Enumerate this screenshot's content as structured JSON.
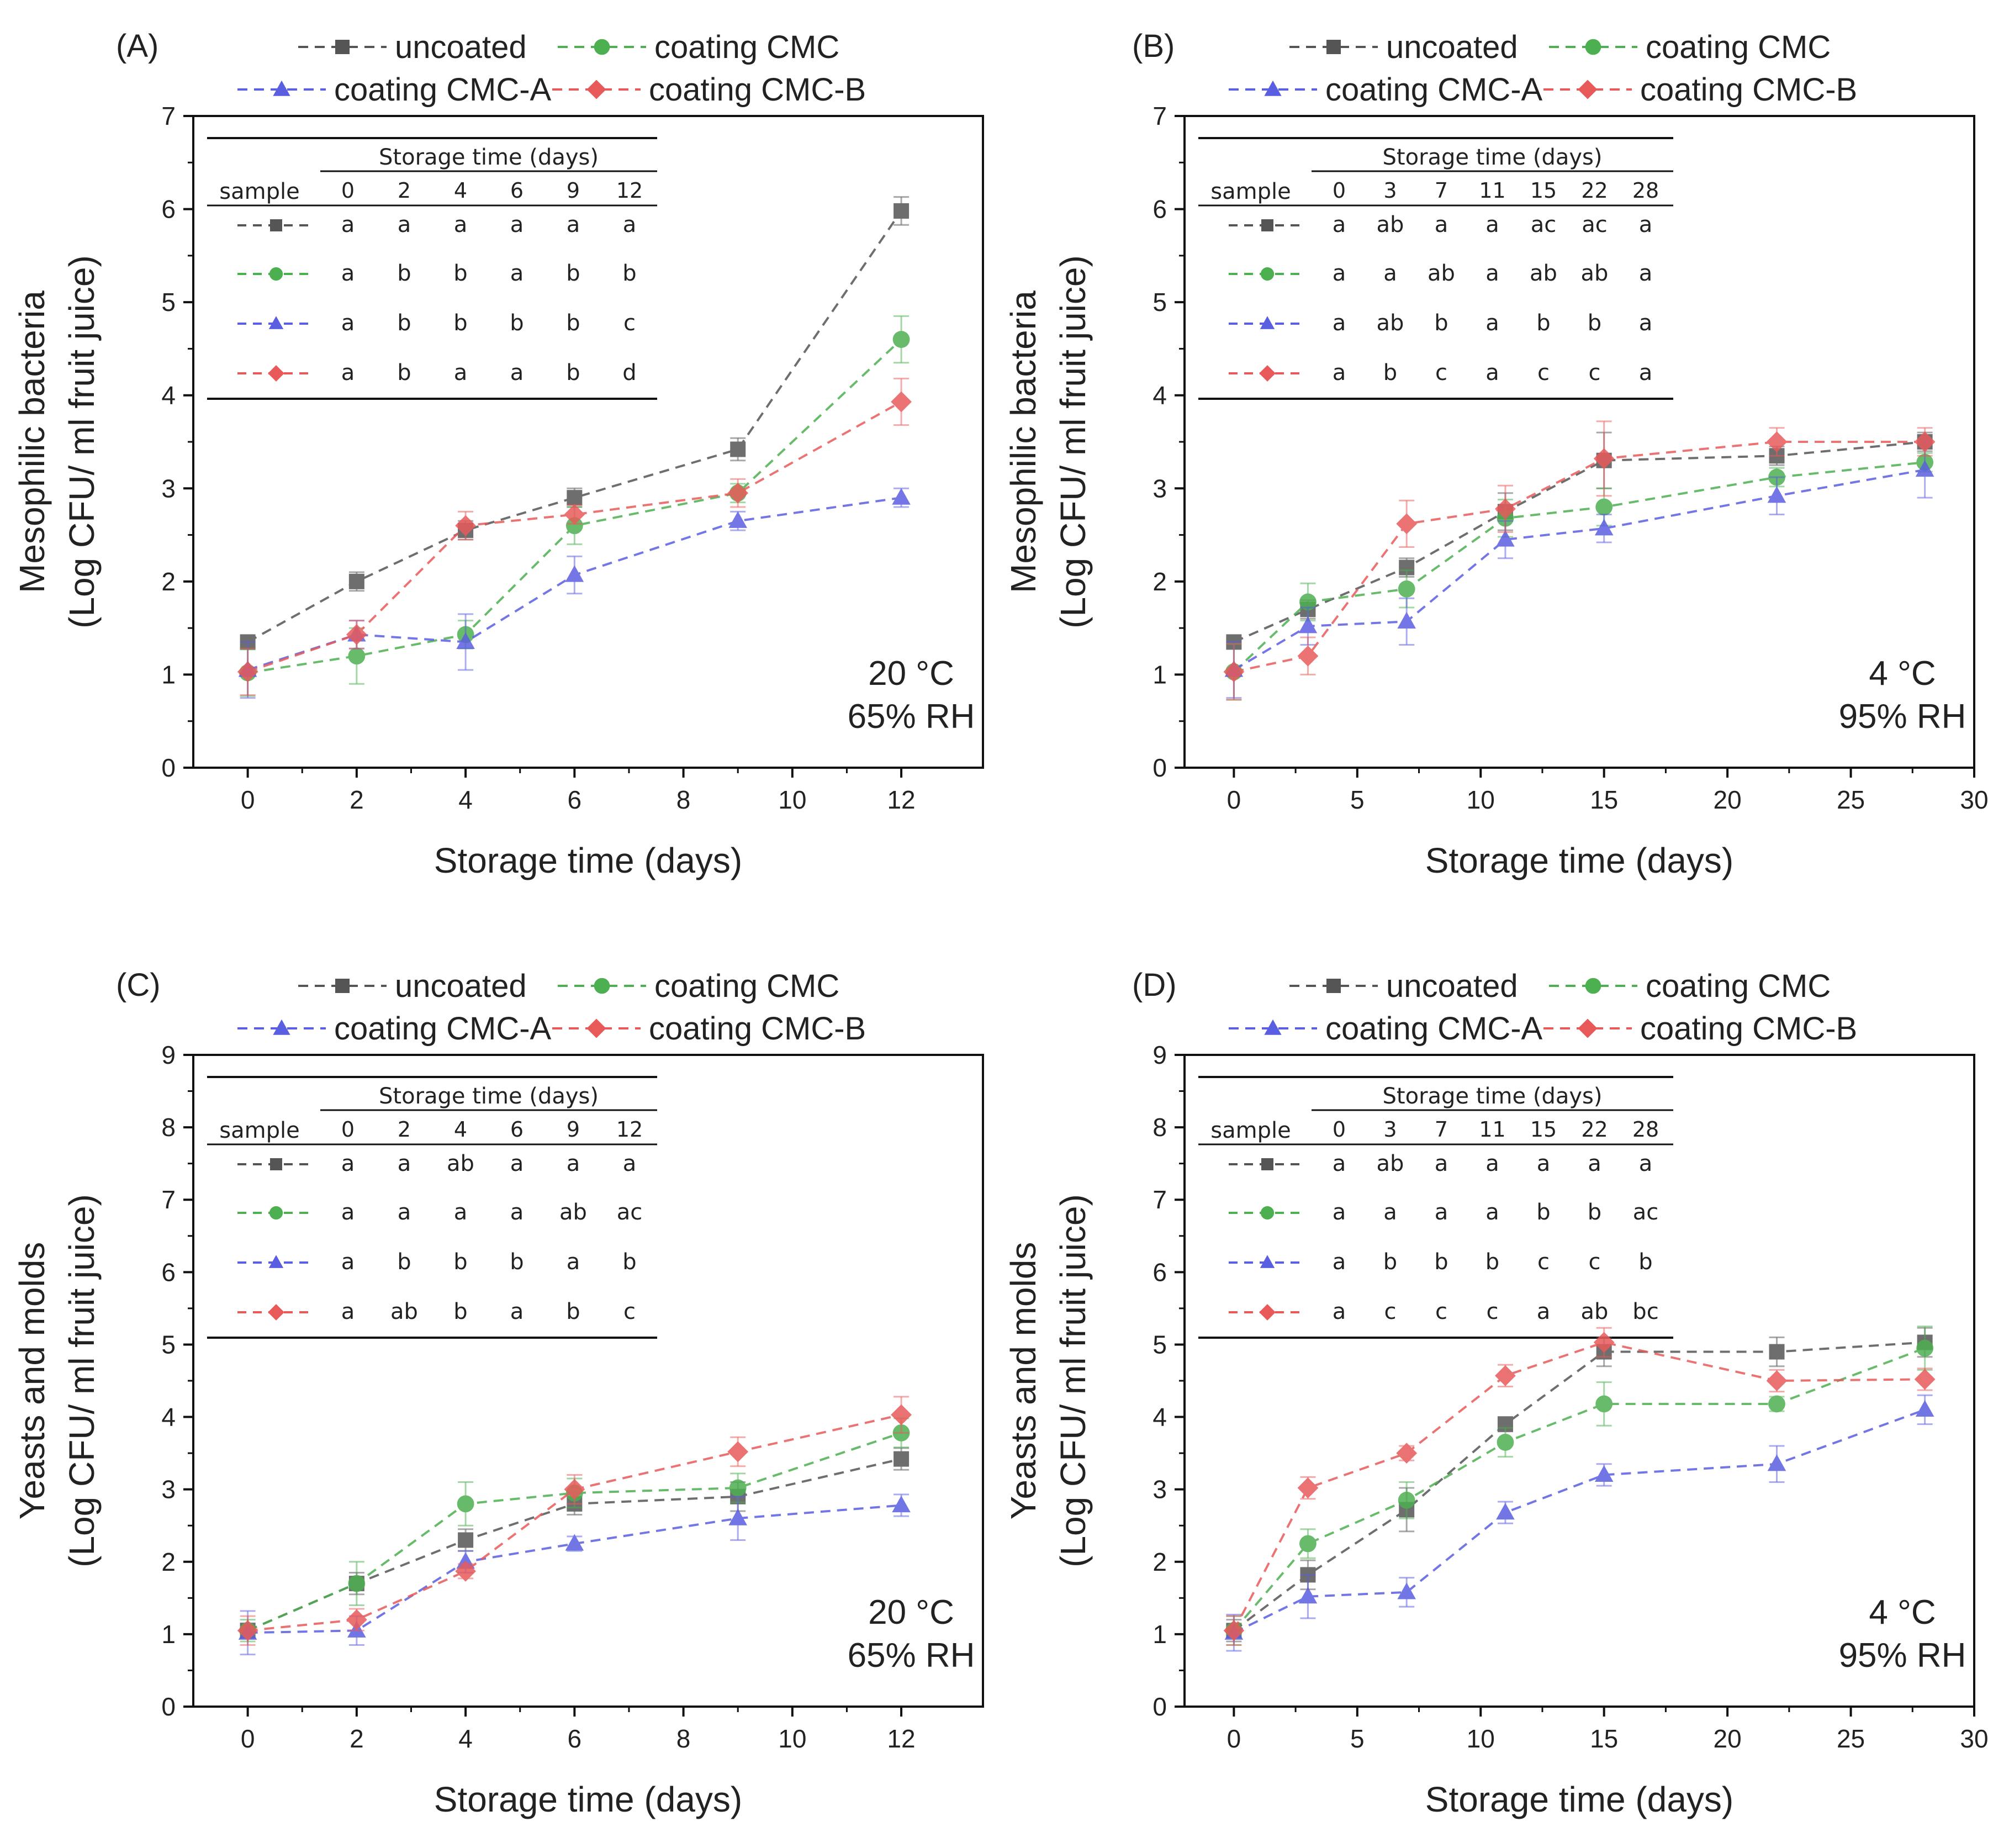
{
  "legend": [
    {
      "label": "uncoated",
      "color": "#555555",
      "marker": "square"
    },
    {
      "label": "coating CMC",
      "color": "#4caf50",
      "marker": "circle"
    },
    {
      "label": "coating CMC-A",
      "color": "#5a5ee0",
      "marker": "triangle"
    },
    {
      "label": "coating CMC-B",
      "color": "#e85a5a",
      "marker": "diamond"
    }
  ],
  "chart_data": [
    {
      "type": "line",
      "panel_label": "(A)",
      "xlabel": "Storage time (days)",
      "ylabel_line1": "Mesophilic bacteria",
      "ylabel_line2": "(Log CFU/ ml fruit juice)",
      "xlim": [
        -1,
        13.5
      ],
      "ylim": [
        0,
        7
      ],
      "xticks": [
        0,
        2,
        4,
        6,
        8,
        10,
        12
      ],
      "yticks": [
        0,
        1,
        2,
        3,
        4,
        5,
        6,
        7
      ],
      "condition_line1": "20 °C",
      "condition_line2": "65% RH",
      "series": [
        {
          "name": "uncoated",
          "x": [
            0,
            2,
            4,
            6,
            9,
            12
          ],
          "y": [
            1.35,
            2.0,
            2.55,
            2.9,
            3.42,
            5.98
          ],
          "err": [
            0.06,
            0.1,
            0.1,
            0.1,
            0.12,
            0.15
          ]
        },
        {
          "name": "coating CMC",
          "x": [
            0,
            2,
            4,
            6,
            9,
            12
          ],
          "y": [
            1.02,
            1.2,
            1.43,
            2.6,
            2.95,
            4.6
          ],
          "err": [
            0.25,
            0.3,
            0.15,
            0.2,
            0.1,
            0.25
          ]
        },
        {
          "name": "coating CMC-A",
          "x": [
            0,
            2,
            4,
            6,
            9,
            12
          ],
          "y": [
            1.05,
            1.43,
            1.35,
            2.07,
            2.65,
            2.9
          ],
          "err": [
            0.3,
            0.15,
            0.3,
            0.2,
            0.1,
            0.1
          ]
        },
        {
          "name": "coating CMC-B",
          "x": [
            0,
            2,
            4,
            6,
            9,
            12
          ],
          "y": [
            1.03,
            1.43,
            2.6,
            2.72,
            2.95,
            3.93
          ],
          "err": [
            0.25,
            0.15,
            0.15,
            0.1,
            0.15,
            0.25
          ]
        }
      ],
      "table": {
        "title": "Storage time (days)",
        "sample_header": "sample",
        "columns": [
          "0",
          "2",
          "4",
          "6",
          "9",
          "12"
        ],
        "rows": [
          [
            "a",
            "a",
            "a",
            "a",
            "a",
            "a"
          ],
          [
            "a",
            "b",
            "b",
            "a",
            "b",
            "b"
          ],
          [
            "a",
            "b",
            "b",
            "b",
            "b",
            "c"
          ],
          [
            "a",
            "b",
            "a",
            "a",
            "b",
            "d"
          ]
        ]
      }
    },
    {
      "type": "line",
      "panel_label": "(B)",
      "xlabel": "Storage time (days)",
      "ylabel_line1": "Mesophilic bacteria",
      "ylabel_line2": "(Log CFU/ ml fruit juice)",
      "xlim": [
        -2,
        30
      ],
      "ylim": [
        0,
        7
      ],
      "xticks": [
        0,
        5,
        10,
        15,
        20,
        25,
        30
      ],
      "yticks": [
        0,
        1,
        2,
        3,
        4,
        5,
        6,
        7
      ],
      "condition_line1": "4 °C",
      "condition_line2": "95% RH",
      "series": [
        {
          "name": "uncoated",
          "x": [
            0,
            3,
            7,
            11,
            15,
            22,
            28
          ],
          "y": [
            1.35,
            1.7,
            2.15,
            2.75,
            3.3,
            3.35,
            3.5
          ],
          "err": [
            0.05,
            0.1,
            0.1,
            0.2,
            0.3,
            0.1,
            0.1
          ]
        },
        {
          "name": "coating CMC",
          "x": [
            0,
            3,
            7,
            11,
            15,
            22,
            28
          ],
          "y": [
            1.03,
            1.78,
            1.92,
            2.68,
            2.8,
            3.12,
            3.28
          ],
          "err": [
            0.3,
            0.2,
            0.2,
            0.2,
            0.2,
            0.1,
            0.1
          ]
        },
        {
          "name": "coating CMC-A",
          "x": [
            0,
            3,
            7,
            11,
            15,
            22,
            28
          ],
          "y": [
            1.05,
            1.52,
            1.57,
            2.45,
            2.57,
            2.92,
            3.2
          ],
          "err": [
            0.3,
            0.2,
            0.25,
            0.2,
            0.15,
            0.2,
            0.3
          ]
        },
        {
          "name": "coating CMC-B",
          "x": [
            0,
            3,
            7,
            11,
            15,
            22,
            28
          ],
          "y": [
            1.03,
            1.2,
            2.62,
            2.78,
            3.32,
            3.5,
            3.5
          ],
          "err": [
            0.3,
            0.2,
            0.25,
            0.25,
            0.4,
            0.15,
            0.15
          ]
        }
      ],
      "table": {
        "title": "Storage time (days)",
        "sample_header": "sample",
        "columns": [
          "0",
          "3",
          "7",
          "11",
          "15",
          "22",
          "28"
        ],
        "rows": [
          [
            "a",
            "ab",
            "a",
            "a",
            "ac",
            "ac",
            "a"
          ],
          [
            "a",
            "a",
            "ab",
            "a",
            "ab",
            "ab",
            "a"
          ],
          [
            "a",
            "ab",
            "b",
            "a",
            "b",
            "b",
            "a"
          ],
          [
            "a",
            "b",
            "c",
            "a",
            "c",
            "c",
            "a"
          ]
        ]
      }
    },
    {
      "type": "line",
      "panel_label": "(C)",
      "xlabel": "Storage time (days)",
      "ylabel_line1": "Yeasts and molds",
      "ylabel_line2": "(Log CFU/ ml fruit juice)",
      "xlim": [
        -1,
        13.5
      ],
      "ylim": [
        0,
        9
      ],
      "xticks": [
        0,
        2,
        4,
        6,
        8,
        10,
        12
      ],
      "yticks": [
        0,
        1,
        2,
        3,
        4,
        5,
        6,
        7,
        8,
        9
      ],
      "condition_line1": "20 °C",
      "condition_line2": "65% RH",
      "series": [
        {
          "name": "uncoated",
          "x": [
            0,
            2,
            4,
            6,
            9,
            12
          ],
          "y": [
            1.05,
            1.7,
            2.3,
            2.8,
            2.9,
            3.42
          ],
          "err": [
            0.1,
            0.15,
            0.15,
            0.15,
            0.2,
            0.15
          ]
        },
        {
          "name": "coating CMC",
          "x": [
            0,
            2,
            4,
            6,
            9,
            12
          ],
          "y": [
            1.05,
            1.7,
            2.8,
            2.95,
            3.02,
            3.78
          ],
          "err": [
            0.15,
            0.3,
            0.3,
            0.2,
            0.2,
            0.2
          ]
        },
        {
          "name": "coating CMC-A",
          "x": [
            0,
            2,
            4,
            6,
            9,
            12
          ],
          "y": [
            1.02,
            1.05,
            2.0,
            2.25,
            2.6,
            2.78
          ],
          "err": [
            0.3,
            0.2,
            0.15,
            0.1,
            0.3,
            0.15
          ]
        },
        {
          "name": "coating CMC-B",
          "x": [
            0,
            2,
            4,
            6,
            9,
            12
          ],
          "y": [
            1.05,
            1.2,
            1.87,
            3.0,
            3.52,
            4.03
          ],
          "err": [
            0.2,
            0.15,
            0.1,
            0.2,
            0.2,
            0.25
          ]
        }
      ],
      "table": {
        "title": "Storage time (days)",
        "sample_header": "sample",
        "columns": [
          "0",
          "2",
          "4",
          "6",
          "9",
          "12"
        ],
        "rows": [
          [
            "a",
            "a",
            "ab",
            "a",
            "a",
            "a"
          ],
          [
            "a",
            "a",
            "a",
            "a",
            "ab",
            "ac"
          ],
          [
            "a",
            "b",
            "b",
            "b",
            "a",
            "b"
          ],
          [
            "a",
            "ab",
            "b",
            "a",
            "b",
            "c"
          ]
        ]
      }
    },
    {
      "type": "line",
      "panel_label": "(D)",
      "xlabel": "Storage time (days)",
      "ylabel_line1": "Yeasts and molds",
      "ylabel_line2": "(Log CFU/ ml fruit juice)",
      "xlim": [
        -2,
        30
      ],
      "ylim": [
        0,
        9
      ],
      "xticks": [
        0,
        5,
        10,
        15,
        20,
        25,
        30
      ],
      "yticks": [
        0,
        1,
        2,
        3,
        4,
        5,
        6,
        7,
        8,
        9
      ],
      "condition_line1": "4 °C",
      "condition_line2": "95% RH",
      "series": [
        {
          "name": "uncoated",
          "x": [
            0,
            3,
            7,
            11,
            15,
            22,
            28
          ],
          "y": [
            1.05,
            1.82,
            2.72,
            3.9,
            4.9,
            4.9,
            5.03
          ],
          "err": [
            0.15,
            0.2,
            0.3,
            0.1,
            0.2,
            0.2,
            0.2
          ]
        },
        {
          "name": "coating CMC",
          "x": [
            0,
            3,
            7,
            11,
            15,
            22,
            28
          ],
          "y": [
            1.05,
            2.25,
            2.85,
            3.65,
            4.18,
            4.18,
            4.95
          ],
          "err": [
            0.2,
            0.2,
            0.25,
            0.2,
            0.3,
            0.1,
            0.3
          ]
        },
        {
          "name": "coating CMC-A",
          "x": [
            0,
            3,
            7,
            11,
            15,
            22,
            28
          ],
          "y": [
            1.02,
            1.52,
            1.58,
            2.68,
            3.2,
            3.35,
            4.1
          ],
          "err": [
            0.25,
            0.3,
            0.2,
            0.15,
            0.15,
            0.25,
            0.2
          ]
        },
        {
          "name": "coating CMC-B",
          "x": [
            0,
            3,
            7,
            11,
            15,
            22,
            28
          ],
          "y": [
            1.05,
            3.02,
            3.5,
            4.57,
            5.03,
            4.5,
            4.52
          ],
          "err": [
            0.2,
            0.15,
            0.1,
            0.15,
            0.2,
            0.15,
            0.15
          ]
        }
      ],
      "table": {
        "title": "Storage time (days)",
        "sample_header": "sample",
        "columns": [
          "0",
          "3",
          "7",
          "11",
          "15",
          "22",
          "28"
        ],
        "rows": [
          [
            "a",
            "ab",
            "a",
            "a",
            "a",
            "a",
            "a"
          ],
          [
            "a",
            "a",
            "a",
            "a",
            "b",
            "b",
            "ac"
          ],
          [
            "a",
            "b",
            "b",
            "b",
            "c",
            "c",
            "b"
          ],
          [
            "a",
            "c",
            "c",
            "c",
            "a",
            "ab",
            "bc"
          ]
        ]
      }
    }
  ]
}
